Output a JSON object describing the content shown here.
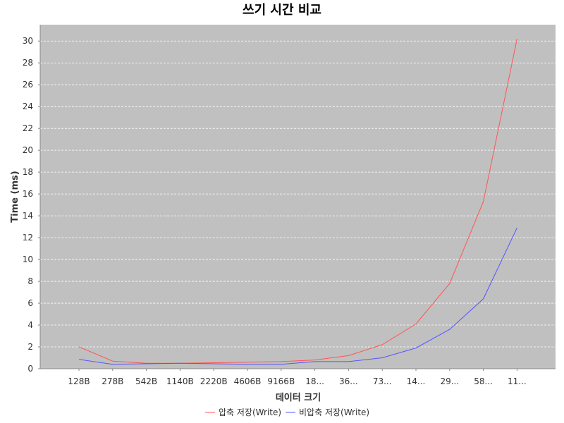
{
  "chart_data": {
    "type": "line",
    "title": "쓰기 시간 비교",
    "xlabel": "데이터 크기",
    "ylabel": "Time (ms)",
    "categories": [
      "128B",
      "278B",
      "542B",
      "1140B",
      "2220B",
      "4606B",
      "9166B",
      "18...",
      "36...",
      "73...",
      "14...",
      "29...",
      "58...",
      "11..."
    ],
    "ylim": [
      0,
      31.5
    ],
    "yticks": [
      0,
      2,
      4,
      6,
      8,
      10,
      12,
      14,
      16,
      18,
      20,
      22,
      24,
      26,
      28,
      30
    ],
    "grid": true,
    "legend_position": "bottom-center",
    "background": "#c0c0c0",
    "series": [
      {
        "name": "압축 저장(Write)",
        "color": "#ff5555",
        "values": [
          2.0,
          0.7,
          0.5,
          0.5,
          0.55,
          0.6,
          0.65,
          0.8,
          1.2,
          2.2,
          4.1,
          7.8,
          15.3,
          30.2
        ]
      },
      {
        "name": "비압축 저장(Write)",
        "color": "#5555ff",
        "values": [
          0.85,
          0.4,
          0.45,
          0.5,
          0.45,
          0.4,
          0.4,
          0.65,
          0.65,
          1.0,
          1.9,
          3.6,
          6.4,
          12.9
        ]
      }
    ]
  }
}
